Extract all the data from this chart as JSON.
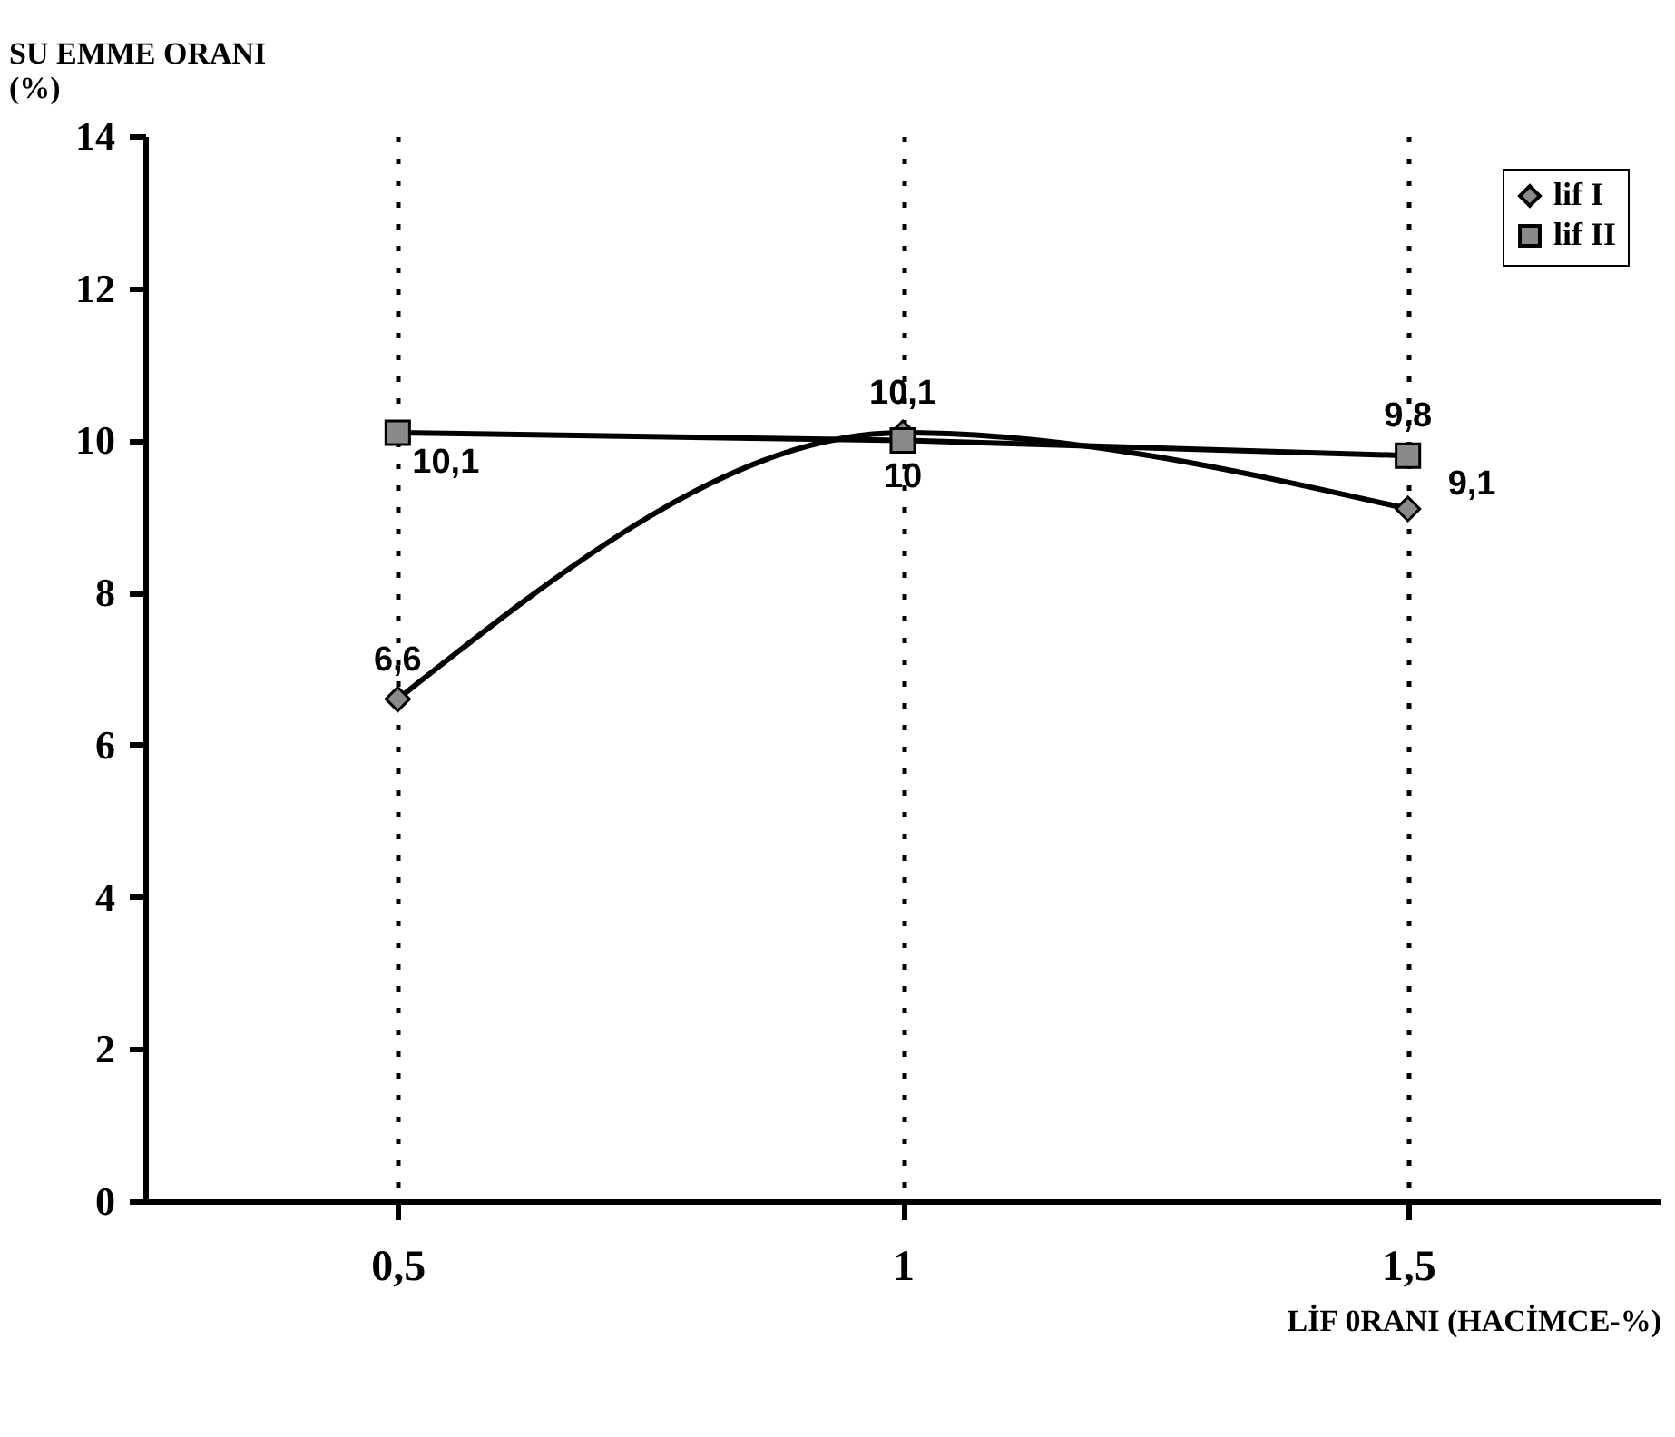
{
  "chart_data": {
    "type": "line",
    "ylabel": "SU EMME ORANI\n(%)",
    "xlabel": "LİF 0RANI (HACİMCE-%)",
    "categories": [
      "0,5",
      "1",
      "1,5"
    ],
    "series": [
      {
        "name": "lif I",
        "color": "#000000",
        "marker": "diamond",
        "values": [
          6.6,
          10.1,
          9.1
        ],
        "value_labels": [
          "6,6",
          "10,1",
          "9,1"
        ]
      },
      {
        "name": "lif II",
        "color": "#000000",
        "marker": "square",
        "values": [
          10.1,
          10,
          9.8
        ],
        "value_labels": [
          "10,1",
          "10",
          "9,8"
        ]
      }
    ],
    "ylim": [
      0,
      14
    ],
    "yticks": [
      0,
      2,
      4,
      6,
      8,
      10,
      12,
      14
    ],
    "grid": "x",
    "legend": "top right"
  }
}
